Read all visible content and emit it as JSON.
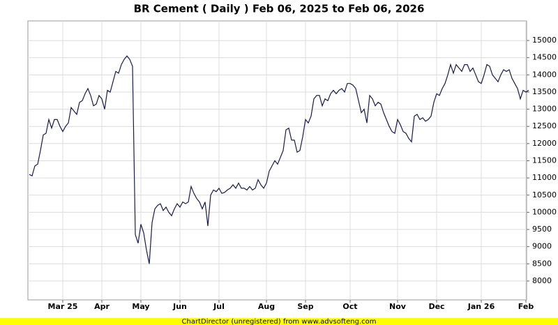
{
  "chart_data": {
    "type": "line",
    "title": "BR Cement ( Daily ) Feb 06, 2025 to Feb 06, 2026",
    "footer": "ChartDirector (unregistered) from www.advsofteng.com",
    "categories": [
      null,
      null,
      null,
      null,
      null,
      null,
      null,
      null,
      null,
      null,
      null,
      null,
      "Mar 25",
      null,
      null,
      null,
      null,
      null,
      null,
      null,
      null,
      null,
      null,
      null,
      null,
      null,
      "Apr",
      null,
      null,
      null,
      null,
      null,
      null,
      null,
      null,
      null,
      null,
      null,
      null,
      null,
      "May",
      null,
      null,
      null,
      null,
      null,
      null,
      null,
      null,
      null,
      null,
      null,
      null,
      null,
      "Jun",
      null,
      null,
      null,
      null,
      null,
      null,
      null,
      null,
      null,
      null,
      null,
      null,
      null,
      "Jul",
      null,
      null,
      null,
      null,
      null,
      null,
      null,
      null,
      null,
      null,
      null,
      null,
      null,
      null,
      null,
      null,
      "Aug",
      null,
      null,
      null,
      null,
      null,
      null,
      null,
      null,
      null,
      null,
      null,
      null,
      null,
      "Sep",
      null,
      null,
      null,
      null,
      null,
      null,
      null,
      null,
      null,
      null,
      null,
      null,
      null,
      null,
      null,
      "Oct",
      null,
      null,
      null,
      null,
      null,
      null,
      null,
      null,
      null,
      null,
      null,
      null,
      null,
      null,
      null,
      null,
      "Nov",
      null,
      null,
      null,
      null,
      null,
      null,
      null,
      null,
      null,
      null,
      null,
      null,
      null,
      "Dec",
      null,
      null,
      null,
      null,
      null,
      null,
      null,
      null,
      null,
      null,
      null,
      null,
      null,
      null,
      null,
      "Jan 26",
      null,
      null,
      null,
      null,
      null,
      null,
      null,
      null,
      null,
      null,
      null,
      null,
      null,
      null,
      null,
      "Feb",
      null
    ],
    "series": [
      {
        "color": "#1a1a4e",
        "values": [
          11100,
          11060,
          11350,
          11400,
          11800,
          12250,
          12300,
          12700,
          12450,
          12700,
          12700,
          12500,
          12350,
          12500,
          12600,
          13050,
          12950,
          12850,
          13200,
          13250,
          13450,
          13600,
          13400,
          13100,
          13150,
          13400,
          13300,
          13000,
          13550,
          13500,
          13800,
          14100,
          14050,
          14300,
          14450,
          14550,
          14450,
          14250,
          9350,
          9100,
          9650,
          9400,
          8900,
          8500,
          9700,
          10100,
          10200,
          10250,
          10050,
          10150,
          10000,
          9900,
          10100,
          10250,
          10150,
          10300,
          10250,
          10300,
          10750,
          10550,
          10400,
          10300,
          10100,
          10300,
          9600,
          10500,
          10650,
          10600,
          10700,
          10550,
          10580,
          10650,
          10700,
          10800,
          10700,
          10850,
          10700,
          10700,
          10650,
          10750,
          10650,
          10700,
          10950,
          10800,
          10700,
          10850,
          11200,
          11350,
          11500,
          11400,
          11600,
          11800,
          12400,
          12450,
          12100,
          12100,
          11750,
          11800,
          12200,
          12700,
          12600,
          12800,
          13300,
          13400,
          13400,
          13100,
          13300,
          13250,
          13450,
          13550,
          13450,
          13550,
          13600,
          13500,
          13750,
          13750,
          13700,
          13600,
          13250,
          12900,
          13000,
          12600,
          13400,
          13300,
          13100,
          13200,
          13150,
          12900,
          12700,
          12500,
          12350,
          12300,
          12700,
          12550,
          12350,
          12300,
          12150,
          12050,
          12800,
          12850,
          12700,
          12750,
          12650,
          12700,
          12800,
          13200,
          13450,
          13400,
          13600,
          13750,
          14000,
          14300,
          14050,
          14300,
          14200,
          14100,
          14300,
          14300,
          14100,
          14200,
          14000,
          13800,
          13750,
          14000,
          14300,
          14250,
          14000,
          13900,
          13800,
          14000,
          14150,
          14100,
          14150,
          13900,
          13750,
          13600,
          13300,
          13550,
          13500,
          13550
        ]
      }
    ],
    "ylim": [
      7450,
      15570
    ],
    "yticks": [
      8000,
      8500,
      9000,
      9500,
      10000,
      10500,
      11000,
      11500,
      12000,
      12500,
      13000,
      13500,
      14000,
      14500,
      15000
    ],
    "grid": true
  }
}
